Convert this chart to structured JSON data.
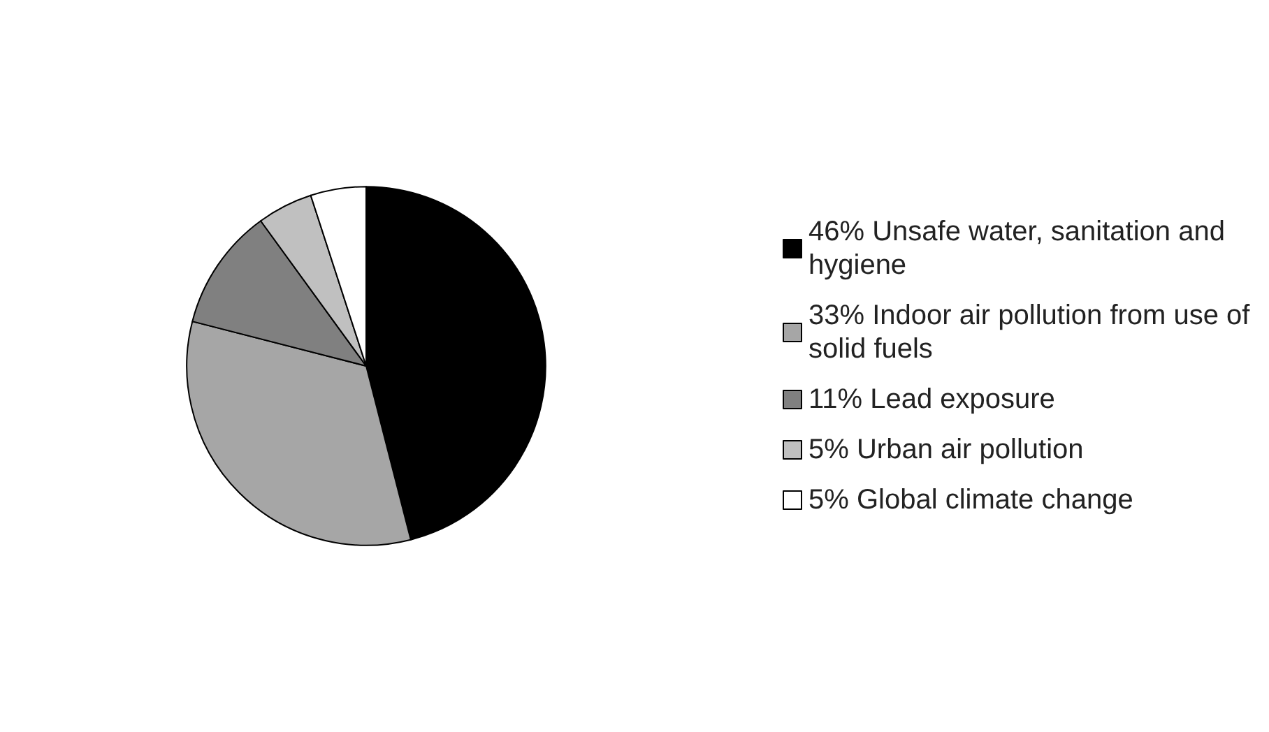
{
  "chart_data": {
    "type": "pie",
    "categories": [
      "46% Unsafe water, sanitation and hygiene",
      "33% Indoor air pollution from use of solid fuels",
      "11% Lead exposure",
      "5% Urban air pollution",
      "5% Global climate change"
    ],
    "values": [
      46,
      33,
      11,
      5,
      5
    ],
    "colors": [
      "#000000",
      "#a6a6a6",
      "#808080",
      "#c0c0c0",
      "#ffffff"
    ],
    "legend": "right"
  }
}
